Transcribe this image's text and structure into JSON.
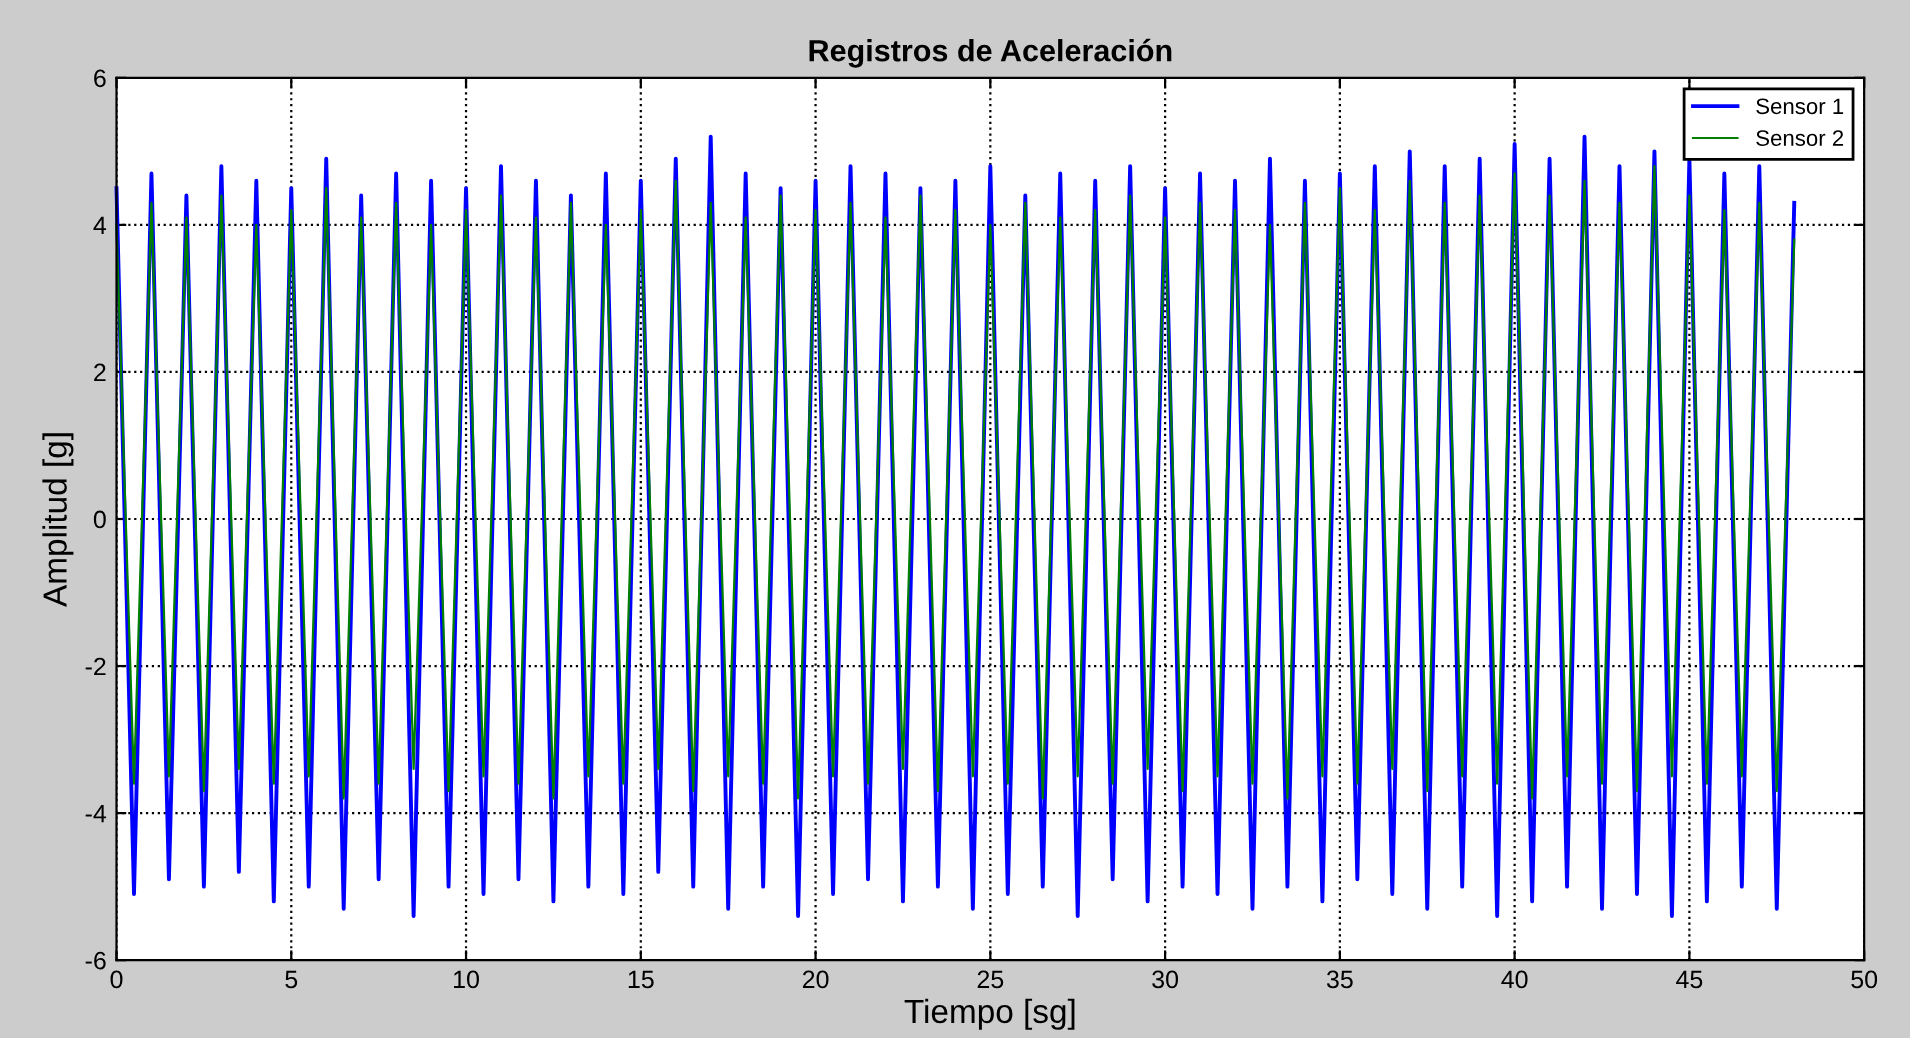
{
  "chart_data": {
    "type": "line",
    "title": "Registros de Aceleración",
    "xlabel": "Tiempo [sg]",
    "ylabel": "Amplitud [g]",
    "x": [
      0,
      0.5,
      1,
      1.5,
      2,
      2.5,
      3,
      3.5,
      4,
      4.5,
      5,
      5.5,
      6,
      6.5,
      7,
      7.5,
      8,
      8.5,
      9,
      9.5,
      10,
      10.5,
      11,
      11.5,
      12,
      12.5,
      13,
      13.5,
      14,
      14.5,
      15,
      15.5,
      16,
      16.5,
      17,
      17.5,
      18,
      18.5,
      19,
      19.5,
      20,
      20.5,
      21,
      21.5,
      22,
      22.5,
      23,
      23.5,
      24,
      24.5,
      25,
      25.5,
      26,
      26.5,
      27,
      27.5,
      28,
      28.5,
      29,
      29.5,
      30,
      30.5,
      31,
      31.5,
      32,
      32.5,
      33,
      33.5,
      34,
      34.5,
      35,
      35.5,
      36,
      36.5,
      37,
      37.5,
      38,
      38.5,
      39,
      39.5,
      40,
      40.5,
      41,
      41.5,
      42,
      42.5,
      43,
      43.5,
      44,
      44.5,
      45,
      45.5,
      46,
      46.5,
      47,
      47.5,
      48
    ],
    "series": [
      {
        "name": "Sensor 1",
        "color": "#0000ff",
        "values": [
          4.5,
          -5.1,
          4.7,
          -4.9,
          4.4,
          -5.0,
          4.8,
          -4.8,
          4.6,
          -5.2,
          4.5,
          -5.0,
          4.9,
          -5.3,
          4.4,
          -4.9,
          4.7,
          -5.4,
          4.6,
          -5.0,
          4.5,
          -5.1,
          4.8,
          -4.9,
          4.6,
          -5.2,
          4.4,
          -5.0,
          4.7,
          -5.1,
          4.6,
          -4.8,
          4.9,
          -5.0,
          5.2,
          -5.3,
          4.7,
          -5.0,
          4.5,
          -5.4,
          4.6,
          -5.1,
          4.8,
          -4.9,
          4.7,
          -5.2,
          4.5,
          -5.0,
          4.6,
          -5.3,
          4.8,
          -5.1,
          4.4,
          -5.0,
          4.7,
          -5.4,
          4.6,
          -4.9,
          4.8,
          -5.2,
          4.5,
          -5.0,
          4.7,
          -5.1,
          4.6,
          -5.3,
          4.9,
          -5.0,
          4.6,
          -5.2,
          4.7,
          -4.9,
          4.8,
          -5.1,
          5.0,
          -5.3,
          4.8,
          -5.0,
          4.9,
          -5.4,
          5.1,
          -5.2,
          4.9,
          -5.0,
          5.2,
          -5.3,
          4.8,
          -5.1,
          5.0,
          -5.4,
          4.9,
          -5.2,
          4.7,
          -5.0,
          4.8,
          -5.3,
          4.3
        ]
      },
      {
        "name": "Sensor 2",
        "color": "#008000",
        "values": [
          4.0,
          -3.6,
          4.3,
          -3.5,
          4.1,
          -3.7,
          4.4,
          -3.4,
          4.0,
          -3.6,
          4.2,
          -3.5,
          4.5,
          -3.8,
          4.1,
          -3.6,
          4.3,
          -3.4,
          4.0,
          -3.7,
          4.2,
          -3.5,
          4.4,
          -3.6,
          4.1,
          -3.8,
          4.3,
          -3.5,
          4.0,
          -3.6,
          4.2,
          -3.4,
          4.6,
          -3.7,
          4.3,
          -3.5,
          4.1,
          -3.6,
          4.4,
          -3.8,
          4.2,
          -3.5,
          4.3,
          -3.6,
          4.1,
          -3.4,
          4.4,
          -3.7,
          4.2,
          -3.5,
          4.0,
          -3.6,
          4.3,
          -3.8,
          4.1,
          -3.5,
          4.2,
          -3.6,
          4.4,
          -3.4,
          4.1,
          -3.7,
          4.3,
          -3.5,
          4.2,
          -3.6,
          4.0,
          -3.8,
          4.3,
          -3.5,
          4.5,
          -3.6,
          4.2,
          -3.4,
          4.6,
          -3.7,
          4.3,
          -3.5,
          4.4,
          -3.6,
          4.7,
          -3.8,
          4.4,
          -3.5,
          4.6,
          -3.6,
          4.3,
          -3.7,
          4.8,
          -3.5,
          4.4,
          -3.6,
          4.2,
          -3.5,
          4.3,
          -3.7,
          3.8
        ]
      }
    ],
    "xlim": [
      0,
      50
    ],
    "xticks": [
      0,
      5,
      10,
      15,
      20,
      25,
      30,
      35,
      40,
      45,
      50
    ],
    "ylim": [
      -6,
      6
    ],
    "yticks": [
      -6,
      -4,
      -2,
      0,
      2,
      4,
      6
    ],
    "grid": true,
    "legend": "top right",
    "line_style": "solid",
    "marker": "none"
  }
}
